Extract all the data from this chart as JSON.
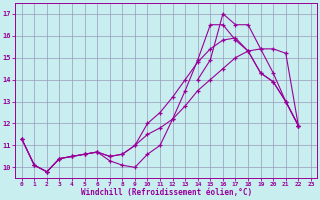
{
  "xlabel": "Windchill (Refroidissement éolien,°C)",
  "background_color": "#c8eef0",
  "line_color": "#990099",
  "grid_color": "#9999bb",
  "xlim": [
    -0.5,
    23.5
  ],
  "ylim": [
    9.5,
    17.5
  ],
  "yticks": [
    10,
    11,
    12,
    13,
    14,
    15,
    16,
    17
  ],
  "xticks": [
    0,
    1,
    2,
    3,
    4,
    5,
    6,
    7,
    8,
    9,
    10,
    11,
    12,
    13,
    14,
    15,
    16,
    17,
    18,
    19,
    20,
    21,
    22,
    23
  ],
  "line1_x": [
    0,
    1,
    2,
    3,
    4,
    5,
    6,
    7,
    8,
    9,
    10,
    11,
    12,
    13,
    14,
    15,
    16,
    17,
    18,
    19,
    20,
    21,
    22
  ],
  "line1_y": [
    11.3,
    10.1,
    9.8,
    10.4,
    10.5,
    10.6,
    10.7,
    10.5,
    10.6,
    11.0,
    11.5,
    11.8,
    12.2,
    12.8,
    13.5,
    14.0,
    14.5,
    15.0,
    15.3,
    15.4,
    15.4,
    15.2,
    11.9
  ],
  "line2_x": [
    0,
    1,
    2,
    3,
    4,
    5,
    6,
    7,
    8,
    9,
    10,
    11,
    12,
    13,
    14,
    15,
    16,
    17,
    18,
    19,
    20,
    21,
    22
  ],
  "line2_y": [
    11.3,
    10.1,
    9.8,
    10.4,
    10.5,
    10.6,
    10.7,
    10.5,
    10.6,
    11.0,
    12.0,
    12.5,
    13.2,
    14.0,
    14.8,
    15.4,
    15.8,
    15.9,
    15.3,
    14.3,
    13.9,
    13.0,
    11.9
  ],
  "line3_x": [
    0,
    1,
    2,
    3,
    4,
    5,
    6,
    7,
    8,
    9,
    10,
    11,
    12,
    13,
    14,
    15,
    16,
    17,
    18,
    19,
    20,
    21,
    22
  ],
  "line3_y": [
    11.3,
    10.1,
    9.8,
    10.4,
    10.5,
    10.6,
    10.7,
    10.3,
    10.1,
    10.0,
    10.6,
    11.0,
    12.2,
    13.5,
    14.9,
    16.5,
    16.5,
    15.8,
    15.3,
    14.3,
    13.9,
    13.0,
    11.9
  ],
  "line4_x": [
    14,
    15,
    16,
    17,
    18,
    19,
    20,
    21,
    22
  ],
  "line4_y": [
    14.0,
    14.9,
    17.0,
    16.5,
    16.5,
    15.4,
    14.3,
    13.0,
    11.9
  ]
}
